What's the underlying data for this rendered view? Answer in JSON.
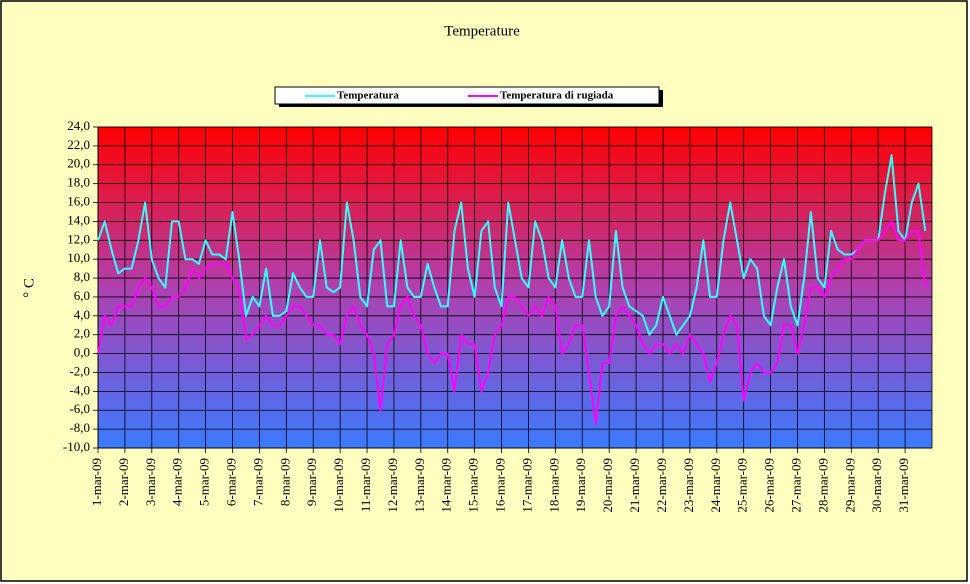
{
  "chart_data": {
    "type": "line",
    "title": "Temperature",
    "y_label": "° C",
    "categories": [
      "1-mar-09",
      null,
      null,
      null,
      "2-mar-09",
      null,
      null,
      null,
      "3-mar-09",
      null,
      null,
      null,
      "4-mar-09",
      null,
      null,
      null,
      "5-mar-09",
      null,
      null,
      null,
      "6-mar-09",
      null,
      null,
      null,
      "7-mar-09",
      null,
      null,
      null,
      "8-mar-09",
      null,
      null,
      null,
      "9-mar-09",
      null,
      null,
      null,
      "10-mar-09",
      null,
      null,
      null,
      "11-mar-09",
      null,
      null,
      null,
      "12-mar-09",
      null,
      null,
      null,
      "13-mar-09",
      null,
      null,
      null,
      "14-mar-09",
      null,
      null,
      null,
      "15-mar-09",
      null,
      null,
      null,
      "16-mar-09",
      null,
      null,
      null,
      "17-mar-09",
      null,
      null,
      null,
      "18-mar-09",
      null,
      null,
      null,
      "19-mar-09",
      null,
      null,
      null,
      "20-mar-09",
      null,
      null,
      null,
      "21-mar-09",
      null,
      null,
      null,
      "22-mar-09",
      null,
      null,
      null,
      "23-mar-09",
      null,
      null,
      null,
      "24-mar-09",
      null,
      null,
      null,
      "25-mar-09",
      null,
      null,
      null,
      "26-mar-09",
      null,
      null,
      null,
      "27-mar-09",
      null,
      null,
      null,
      "28-mar-09",
      null,
      null,
      null,
      "29-mar-09",
      null,
      null,
      null,
      "30-mar-09",
      null,
      null,
      null,
      "31-mar-09",
      null,
      null,
      null
    ],
    "series": [
      {
        "name": "Temperatura",
        "color": "#33ffff",
        "values": [
          12,
          14,
          11,
          8.5,
          9,
          9,
          12,
          16,
          10,
          8,
          7,
          14,
          14,
          10,
          10,
          9.5,
          12,
          10.5,
          10.5,
          10,
          15,
          10,
          4,
          6,
          5,
          9,
          4,
          4,
          4.5,
          8.5,
          7,
          6,
          6,
          12,
          7,
          6.5,
          7,
          16,
          12,
          6,
          5,
          11,
          12,
          5,
          5,
          12,
          7,
          6,
          6,
          9.5,
          7,
          5,
          5,
          13,
          16,
          9,
          6,
          13,
          14,
          7,
          5,
          16,
          12,
          8,
          7,
          14,
          12,
          8,
          7,
          12,
          8,
          6,
          6,
          12,
          6,
          4,
          5,
          13,
          7,
          5,
          4.5,
          4,
          2,
          3,
          6,
          4,
          2,
          3,
          4,
          7,
          12,
          6,
          6,
          12,
          16,
          12,
          8,
          10,
          9,
          4,
          3,
          7,
          10,
          5,
          3,
          8,
          15,
          8,
          7,
          13,
          11,
          10.5,
          10.5,
          11,
          12,
          12,
          12,
          17,
          21,
          13,
          12,
          16,
          18,
          13
        ]
      },
      {
        "name": "Temperatura di rugiada",
        "color": "#ff00ff",
        "values": [
          0,
          4,
          3,
          5,
          5,
          5,
          7,
          8,
          7,
          5,
          5,
          6,
          6,
          7,
          9,
          8,
          9,
          9.5,
          9.5,
          9.5,
          8,
          7,
          1.5,
          2,
          3,
          4,
          3,
          3,
          4,
          5,
          5,
          4,
          3,
          3,
          2,
          2,
          1,
          4,
          5,
          3,
          2,
          0,
          -6,
          1,
          2,
          5,
          6,
          4,
          3,
          0,
          -1,
          0,
          0,
          -4,
          2,
          1,
          1,
          -4,
          -2,
          2,
          3,
          6,
          6,
          5,
          4,
          5,
          4,
          6,
          5,
          0,
          1,
          3,
          3,
          -2,
          -7.5,
          -1,
          -1,
          4,
          5,
          4,
          3,
          1,
          0,
          1,
          1,
          0,
          1,
          0,
          2,
          1,
          0,
          -3,
          -1,
          2,
          4,
          3,
          -5,
          -2,
          -1,
          -2,
          -2,
          -1,
          3,
          3,
          0,
          3,
          7,
          7,
          6,
          8,
          9,
          10,
          10,
          11,
          12,
          12,
          12,
          13,
          14,
          12,
          12,
          13,
          13,
          7
        ]
      }
    ],
    "ylim": [
      -10,
      24
    ],
    "yticks": [
      {
        "value": -10,
        "label": "-10,0"
      },
      {
        "value": -8,
        "label": "-8,0"
      },
      {
        "value": -6,
        "label": "-6,0"
      },
      {
        "value": -4,
        "label": "-4,0"
      },
      {
        "value": -2,
        "label": "-2,0"
      },
      {
        "value": 0,
        "label": "0,0"
      },
      {
        "value": 2,
        "label": "2,0"
      },
      {
        "value": 4,
        "label": "4,0"
      },
      {
        "value": 6,
        "label": "6,0"
      },
      {
        "value": 8,
        "label": "8,0"
      },
      {
        "value": 10,
        "label": "10,0"
      },
      {
        "value": 12,
        "label": "12,0"
      },
      {
        "value": 14,
        "label": "14,0"
      },
      {
        "value": 16,
        "label": "16,0"
      },
      {
        "value": 18,
        "label": "18,0"
      },
      {
        "value": 20,
        "label": "20,0"
      },
      {
        "value": 22,
        "label": "22,0"
      },
      {
        "value": 24,
        "label": "24,0"
      }
    ],
    "grid": true
  }
}
